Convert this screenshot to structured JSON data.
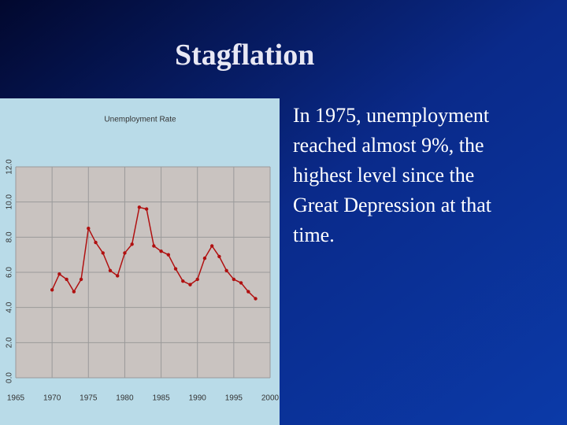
{
  "slide": {
    "title": "Stagflation",
    "body": [
      "In 1975, unemployment",
      "reached almost 9%, the",
      "highest level since the",
      "Great Depression at that",
      "time."
    ]
  },
  "chart_data": {
    "type": "line",
    "title": "Unemployment Rate",
    "x": [
      1970,
      1971,
      1972,
      1973,
      1974,
      1975,
      1976,
      1977,
      1978,
      1979,
      1980,
      1981,
      1982,
      1983,
      1984,
      1985,
      1986,
      1987,
      1988,
      1989,
      1990,
      1991,
      1992,
      1993,
      1994,
      1995,
      1996,
      1997,
      1998
    ],
    "values": [
      5.0,
      5.9,
      5.6,
      4.9,
      5.6,
      8.5,
      7.7,
      7.1,
      6.1,
      5.8,
      7.1,
      7.6,
      9.7,
      9.6,
      7.5,
      7.2,
      7.0,
      6.2,
      5.5,
      5.3,
      5.6,
      6.8,
      7.5,
      6.9,
      6.1,
      5.6,
      5.4,
      4.9,
      4.5
    ],
    "color": "#b01010",
    "xlim": [
      1965,
      2000
    ],
    "xticks": [
      1965,
      1970,
      1975,
      1980,
      1985,
      1990,
      1995,
      2000
    ],
    "ylim": [
      0,
      12
    ],
    "yticks": [
      {
        "value": 0,
        "label": "0.0"
      },
      {
        "value": 2,
        "label": "2.0"
      },
      {
        "value": 4,
        "label": "4.0"
      },
      {
        "value": 6,
        "label": "6.0"
      },
      {
        "value": 8,
        "label": "8.0"
      },
      {
        "value": 10,
        "label": "10.0"
      },
      {
        "value": 12,
        "label": "12.0"
      }
    ],
    "grid": true
  }
}
